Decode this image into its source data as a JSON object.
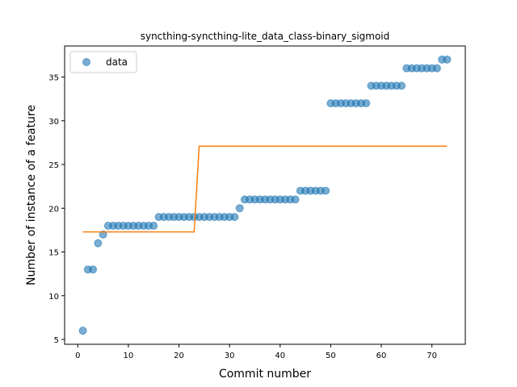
{
  "chart_data": {
    "type": "scatter",
    "title": "syncthing-syncthing-lite_data_class-binary_sigmoid",
    "xlabel": "Commit number",
    "ylabel": "Number of instance of a feature",
    "xlim": [
      -2.6,
      76.6
    ],
    "ylim": [
      4.45,
      38.55
    ],
    "xticks": [
      0,
      10,
      20,
      30,
      40,
      50,
      60,
      70
    ],
    "yticks": [
      5,
      10,
      15,
      20,
      25,
      30,
      35
    ],
    "legend": {
      "position": "top-left",
      "entries": [
        {
          "label": "data",
          "marker": "circle",
          "color": "#1f77b4"
        }
      ]
    },
    "grid": false,
    "colors": {
      "points": "#1f77b4",
      "fit": "#ff7f0e"
    },
    "series": [
      {
        "name": "data",
        "kind": "scatter",
        "x": [
          1,
          2,
          3,
          4,
          5,
          6,
          7,
          8,
          9,
          10,
          11,
          12,
          13,
          14,
          15,
          16,
          17,
          18,
          19,
          20,
          21,
          22,
          23,
          24,
          25,
          26,
          27,
          28,
          29,
          30,
          31,
          32,
          33,
          34,
          35,
          36,
          37,
          38,
          39,
          40,
          41,
          42,
          43,
          44,
          45,
          46,
          47,
          48,
          49,
          50,
          51,
          52,
          53,
          54,
          55,
          56,
          57,
          58,
          59,
          60,
          61,
          62,
          63,
          64,
          65,
          66,
          67,
          68,
          69,
          70,
          71,
          72,
          73
        ],
        "y": [
          6,
          13,
          13,
          16,
          17,
          18,
          18,
          18,
          18,
          18,
          18,
          18,
          18,
          18,
          18,
          19,
          19,
          19,
          19,
          19,
          19,
          19,
          19,
          19,
          19,
          19,
          19,
          19,
          19,
          19,
          19,
          20,
          21,
          21,
          21,
          21,
          21,
          21,
          21,
          21,
          21,
          21,
          21,
          22,
          22,
          22,
          22,
          22,
          22,
          32,
          32,
          32,
          32,
          32,
          32,
          32,
          32,
          34,
          34,
          34,
          34,
          34,
          34,
          34,
          36,
          36,
          36,
          36,
          36,
          36,
          36,
          37,
          37
        ]
      },
      {
        "name": "fit",
        "kind": "line",
        "x": [
          1,
          23,
          24,
          73
        ],
        "y": [
          17.3,
          17.3,
          27.1,
          27.1
        ]
      }
    ]
  }
}
